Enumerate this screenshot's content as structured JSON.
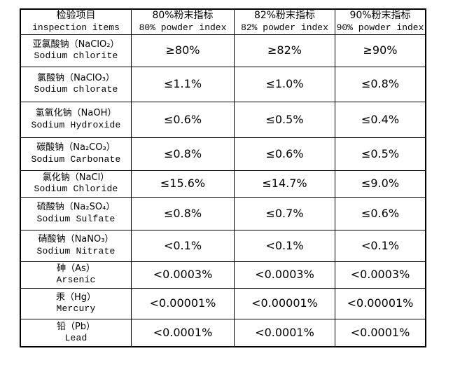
{
  "table": {
    "header": [
      {
        "cn": "检验项目",
        "en": "inspection items"
      },
      {
        "cn": "80%粉末指标",
        "en": "80% powder index"
      },
      {
        "cn": "82%粉末指标",
        "en": "82% powder index"
      },
      {
        "cn": "90%粉末指标",
        "en": "90% powder index"
      }
    ],
    "rows": [
      {
        "cn": "亚氯酸钠（NaClO₂）",
        "en": "Sodium chlorite",
        "values": [
          "≥80%",
          "≥82%",
          "≥90%"
        ]
      },
      {
        "cn": "氯酸钠（NaClO₃）",
        "en": "Sodium chlorate",
        "values": [
          "≤1.1%",
          "≤1.0%",
          "≤0.8%"
        ]
      },
      {
        "cn": "氢氧化钠（NaOH）",
        "en": "Sodium Hydroxide",
        "values": [
          "≤0.6%",
          "≤0.5%",
          "≤0.4%"
        ]
      },
      {
        "cn": "碳酸钠（Na₂CO₃）",
        "en": "Sodium Carbonate",
        "values": [
          "≤0.8%",
          "≤0.6%",
          "≤0.5%"
        ]
      },
      {
        "cn": "氯化钠（NaCl）",
        "en": "Sodium Chloride",
        "values": [
          "≤15.6%",
          "≤14.7%",
          "≤9.0%"
        ]
      },
      {
        "cn": "硫酸钠（Na₂SO₄）",
        "en": "Sodium Sulfate",
        "values": [
          "≤0.8%",
          "≤0.7%",
          "≤0.6%"
        ]
      },
      {
        "cn": "硝酸钠（NaNO₃）",
        "en": "Sodium Nitrate",
        "values": [
          "<0.1%",
          "<0.1%",
          "<0.1%"
        ]
      },
      {
        "cn": "砷（As）",
        "en": "Arsenic",
        "values": [
          "<0.0003%",
          "<0.0003%",
          "<0.0003%"
        ]
      },
      {
        "cn": "汞（Hg）",
        "en": "Mercury",
        "values": [
          "<0.00001%",
          "<0.00001%",
          "<0.00001%"
        ]
      },
      {
        "cn": "铅（Pb）",
        "en": "Lead",
        "values": [
          "<0.0001%",
          "<0.0001%",
          "<0.0001%"
        ]
      }
    ]
  }
}
